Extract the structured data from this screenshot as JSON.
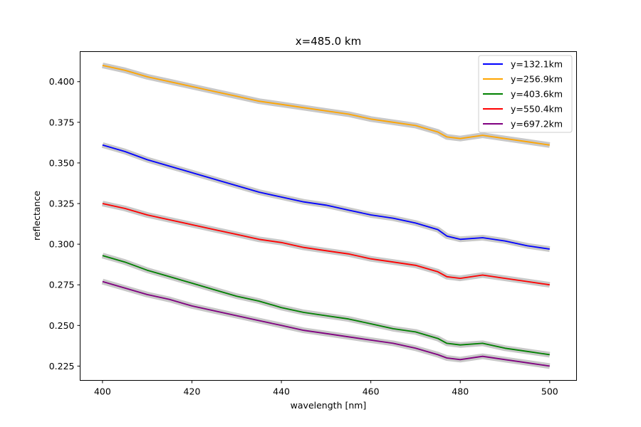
{
  "chart_data": {
    "type": "line",
    "title": "x=485.0 km",
    "xlabel": "wavelength [nm]",
    "ylabel": "reflectance",
    "xlim": [
      395,
      506
    ],
    "ylim": [
      0.2162,
      0.4185
    ],
    "xticks": [
      400,
      420,
      440,
      460,
      480,
      500
    ],
    "yticks": [
      0.225,
      0.25,
      0.275,
      0.3,
      0.325,
      0.35,
      0.375,
      0.4
    ],
    "xtick_labels": [
      "400",
      "420",
      "440",
      "460",
      "480",
      "500"
    ],
    "ytick_labels": [
      "0.225",
      "0.250",
      "0.275",
      "0.300",
      "0.325",
      "0.350",
      "0.375",
      "0.400"
    ],
    "grid": false,
    "legend_position": "top-right",
    "uncertainty_band_color": "#c8c8c8",
    "x": [
      400,
      405,
      410,
      415,
      420,
      425,
      430,
      435,
      440,
      445,
      450,
      455,
      460,
      465,
      470,
      475,
      477,
      480,
      485,
      490,
      495,
      500
    ],
    "series": [
      {
        "name": "y=132.1km",
        "color": "#0000ff",
        "values": [
          0.361,
          0.357,
          0.352,
          0.348,
          0.344,
          0.34,
          0.336,
          0.332,
          0.329,
          0.326,
          0.324,
          0.321,
          0.318,
          0.316,
          0.313,
          0.309,
          0.305,
          0.303,
          0.304,
          0.302,
          0.299,
          0.297
        ]
      },
      {
        "name": "y=256.9km",
        "color": "#ffa500",
        "values": [
          0.41,
          0.407,
          0.403,
          0.4,
          0.397,
          0.394,
          0.391,
          0.388,
          0.386,
          0.384,
          0.382,
          0.38,
          0.377,
          0.375,
          0.373,
          0.369,
          0.366,
          0.365,
          0.367,
          0.365,
          0.363,
          0.361
        ]
      },
      {
        "name": "y=403.6km",
        "color": "#008000",
        "values": [
          0.293,
          0.289,
          0.284,
          0.28,
          0.276,
          0.272,
          0.268,
          0.265,
          0.261,
          0.258,
          0.256,
          0.254,
          0.251,
          0.248,
          0.246,
          0.242,
          0.239,
          0.238,
          0.239,
          0.236,
          0.234,
          0.232
        ]
      },
      {
        "name": "y=550.4km",
        "color": "#ff0000",
        "values": [
          0.325,
          0.322,
          0.318,
          0.315,
          0.312,
          0.309,
          0.306,
          0.303,
          0.301,
          0.298,
          0.296,
          0.294,
          0.291,
          0.289,
          0.287,
          0.283,
          0.28,
          0.279,
          0.281,
          0.279,
          0.277,
          0.275
        ]
      },
      {
        "name": "y=697.2km",
        "color": "#800080",
        "values": [
          0.277,
          0.273,
          0.269,
          0.266,
          0.262,
          0.259,
          0.256,
          0.253,
          0.25,
          0.247,
          0.245,
          0.243,
          0.241,
          0.239,
          0.236,
          0.232,
          0.23,
          0.229,
          0.231,
          0.229,
          0.227,
          0.225
        ]
      }
    ]
  }
}
